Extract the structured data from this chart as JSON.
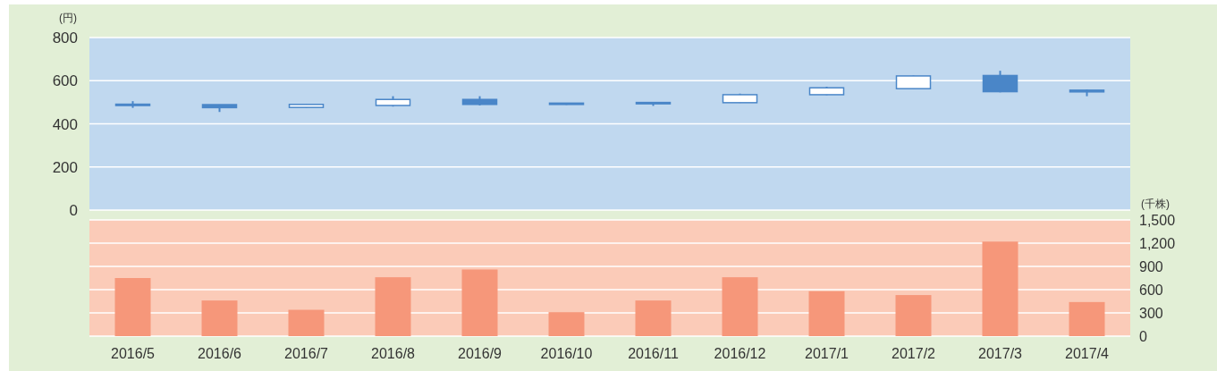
{
  "chart_data": [
    {
      "type": "candlestick",
      "ylabel": "(円)",
      "categories": [
        null,
        null,
        null,
        null,
        null,
        null,
        null,
        null,
        null,
        null,
        null,
        null
      ],
      "ohlc": [
        [
          491,
          505,
          474,
          488
        ],
        [
          489,
          489,
          455,
          475
        ],
        [
          476,
          492,
          474,
          490
        ],
        [
          485,
          528,
          480,
          513
        ],
        [
          513,
          528,
          485,
          490
        ],
        [
          496,
          497,
          488,
          494
        ],
        [
          499,
          500,
          483,
          497
        ],
        [
          498,
          540,
          497,
          535
        ],
        [
          535,
          572,
          533,
          567
        ],
        [
          563,
          624,
          562,
          622
        ],
        [
          624,
          646,
          546,
          549
        ],
        [
          556,
          559,
          528,
          548
        ]
      ],
      "color": "#4a86c8",
      "ylim": [
        0,
        800
      ],
      "yticks": [
        0,
        200,
        400,
        600,
        800
      ],
      "grid": "y",
      "tick_labels": "y"
    },
    {
      "type": "bar",
      "ylabel": "(千株)",
      "categories": [
        "2016/5",
        "2016/6",
        "2016/7",
        "2016/8",
        "2016/9",
        "2016/10",
        "2016/11",
        "2016/12",
        "2017/1",
        "2017/2",
        "2017/3",
        "2017/4"
      ],
      "series": [
        {
          "color": "#f6977a",
          "values": [
            750,
            460,
            340,
            760,
            860,
            310,
            460,
            760,
            580,
            530,
            1220,
            440
          ]
        }
      ],
      "ylim": [
        0,
        1500
      ],
      "yticks": [
        0,
        300,
        600,
        900,
        {
          "value": 1200,
          "label": "1,200"
        },
        {
          "value": 1500,
          "label": "1,500"
        }
      ],
      "grid": "y"
    }
  ]
}
